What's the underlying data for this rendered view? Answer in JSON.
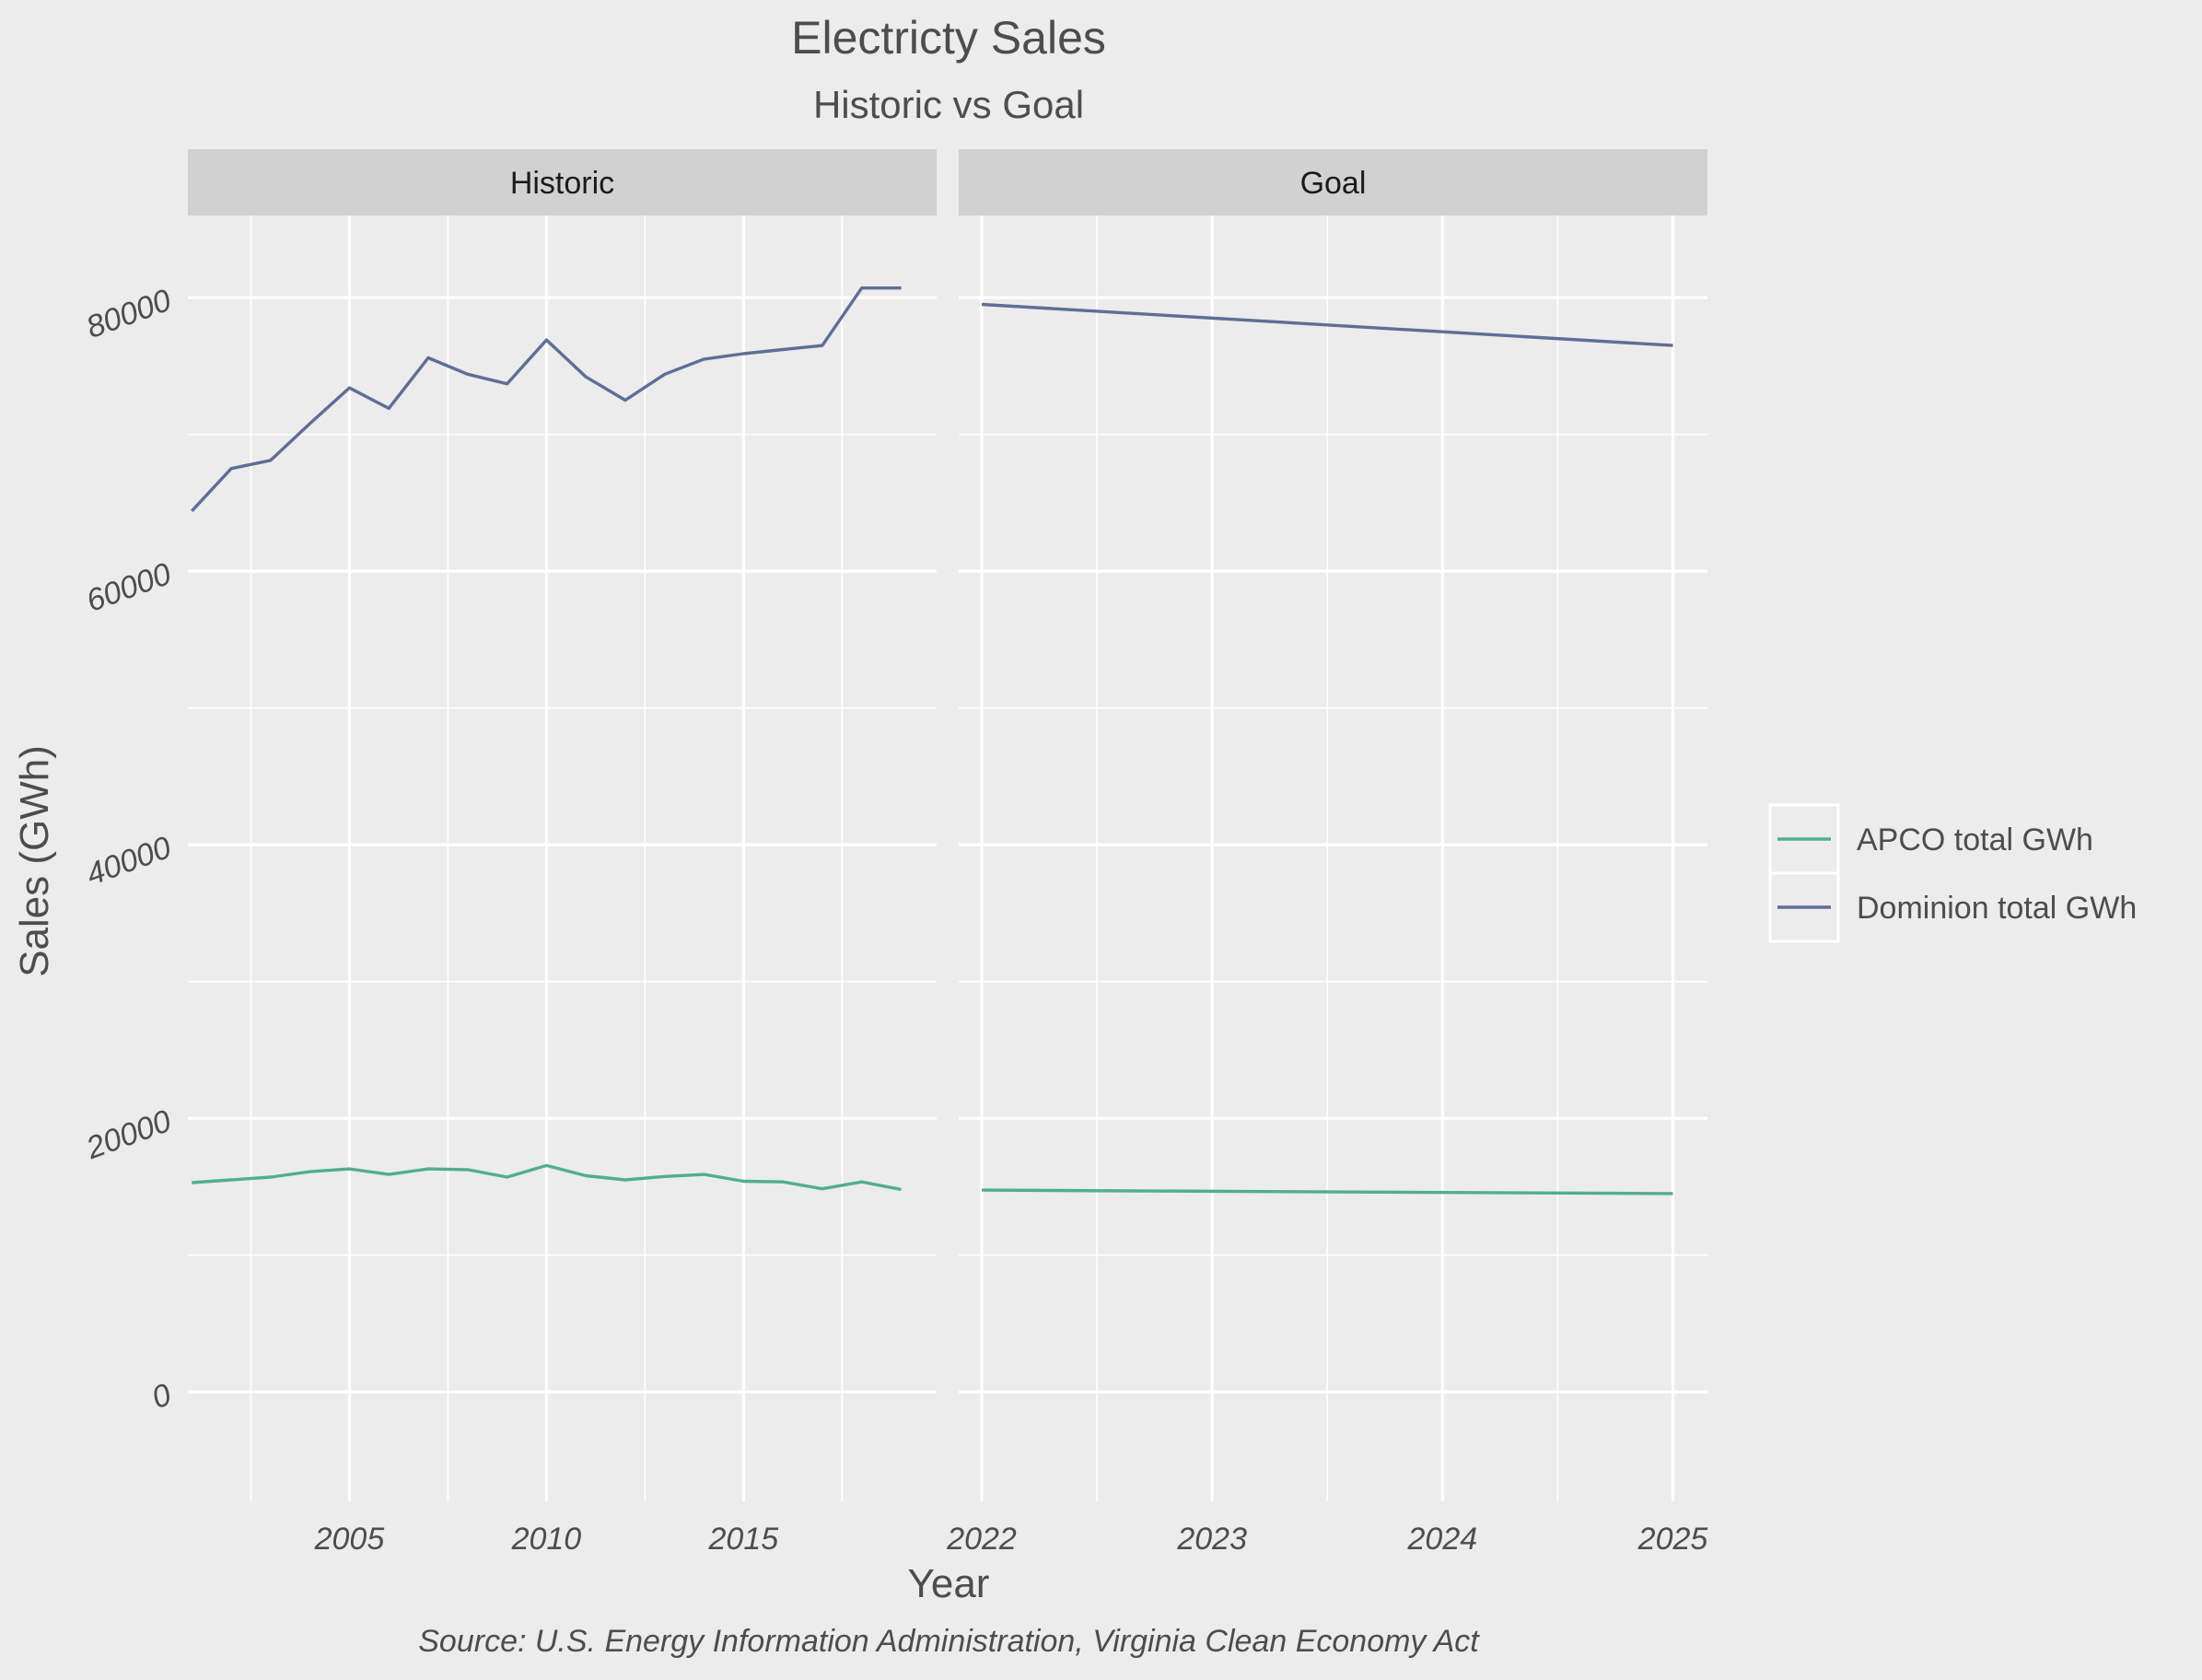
{
  "chart_data": {
    "type": "line",
    "title": "Electricty Sales",
    "subtitle": "Historic vs Goal",
    "xlabel": "Year",
    "ylabel": "Sales (GWh)",
    "caption": "Source:  U.S. Energy Information Administration, Virginia Clean Economy Act",
    "ylim": [
      -8000,
      86000
    ],
    "y_ticks": [
      0,
      20000,
      40000,
      60000,
      80000
    ],
    "y_tick_labels": [
      "0",
      "20000",
      "40000",
      "60000",
      "80000"
    ],
    "y_minor_ticks": [
      10000,
      30000,
      50000,
      70000
    ],
    "grid": true,
    "legend": {
      "position": "right",
      "entries": [
        "APCO total GWh",
        "Dominion total GWh"
      ]
    },
    "colors": {
      "APCO total GWh": "#52ae90",
      "Dominion total GWh": "#5f6e96"
    },
    "panels": [
      {
        "label": "Historic",
        "xlim": [
          2000.9,
          2019.9
        ],
        "x_ticks": [
          2005,
          2010,
          2015
        ],
        "x_tick_labels": [
          "2005",
          "2010",
          "2015"
        ],
        "x_minor_ticks": [
          2002.5,
          2007.5,
          2012.5,
          2017.5
        ],
        "x": [
          2001,
          2002,
          2003,
          2004,
          2005,
          2006,
          2007,
          2008,
          2009,
          2010,
          2011,
          2012,
          2013,
          2014,
          2015,
          2016,
          2017,
          2018,
          2019
        ],
        "series": [
          {
            "name": "APCO total GWh",
            "values": [
              15300,
              15500,
              15700,
              16100,
              16300,
              15900,
              16300,
              16250,
              15700,
              16550,
              15800,
              15500,
              15750,
              15900,
              15400,
              15350,
              14850,
              15350,
              14800
            ]
          },
          {
            "name": "Dominion total GWh",
            "values": [
              64400,
              67500,
              68100,
              70800,
              73400,
              71900,
              75600,
              74400,
              73700,
              76900,
              74200,
              72500,
              74400,
              75500,
              75900,
              76200,
              76500,
              80700,
              80700
            ]
          }
        ]
      },
      {
        "label": "Goal",
        "xlim": [
          2021.9,
          2025.15
        ],
        "x_ticks": [
          2022,
          2023,
          2024,
          2025
        ],
        "x_tick_labels": [
          "2022",
          "2023",
          "2024",
          "2025"
        ],
        "x_minor_ticks": [
          2022.5,
          2023.5,
          2024.5
        ],
        "x": [
          2022,
          2025
        ],
        "series": [
          {
            "name": "APCO total GWh",
            "values": [
              14750,
              14500
            ]
          },
          {
            "name": "Dominion total GWh",
            "values": [
              79500,
              76500
            ]
          }
        ]
      }
    ]
  }
}
